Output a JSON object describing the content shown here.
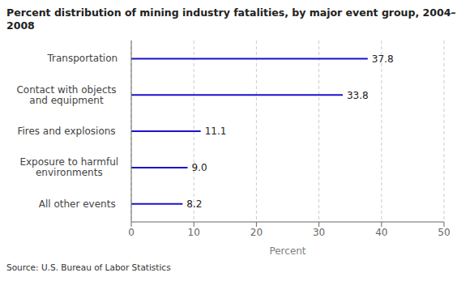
{
  "chart_data": {
    "type": "bar",
    "orientation": "horizontal",
    "title": "Percent distribution of mining industry fatalities, by major event group, 2004–2008",
    "categories": [
      "All other events",
      "Exposure to harmful\nenvironments",
      "Fires and explosions",
      "Contact with objects\nand equipment",
      "Transportation"
    ],
    "values": [
      8.2,
      9.0,
      11.1,
      33.8,
      37.8
    ],
    "value_labels": [
      "8.2",
      "9.0",
      "11.1",
      "33.8",
      "37.8"
    ],
    "data_labels": true,
    "color": "#1a12cc",
    "xlim": [
      0,
      50
    ],
    "xticks": [
      0,
      10,
      20,
      30,
      40,
      50
    ],
    "xlabel": "Percent",
    "grid": true,
    "annotations": [
      "Source: U.S. Bureau of Labor Statistics"
    ]
  }
}
